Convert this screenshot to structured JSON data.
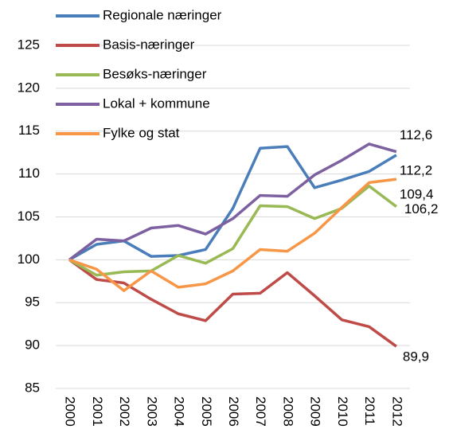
{
  "chart_data": {
    "type": "line",
    "categories": [
      "2000",
      "2001",
      "2002",
      "2003",
      "2004",
      "2005",
      "2006",
      "2007",
      "2008",
      "2009",
      "2010",
      "2011",
      "2012"
    ],
    "series": [
      {
        "name": "Regionale næringer",
        "color": "#4a7ebb",
        "values": [
          100,
          101.8,
          102.2,
          100.4,
          100.5,
          101.2,
          106,
          113,
          113.2,
          108.4,
          109.3,
          110.3,
          112.2
        ],
        "value_labels": [
          null,
          null,
          null,
          null,
          null,
          null,
          null,
          null,
          null,
          null,
          null,
          null,
          "112,2"
        ]
      },
      {
        "name": "Basis-næringer",
        "color": "#be4b48",
        "values": [
          100,
          97.7,
          97.3,
          95.4,
          93.7,
          92.9,
          96,
          96.1,
          98.5,
          95.8,
          93,
          92.2,
          89.9
        ],
        "value_labels": [
          null,
          null,
          null,
          null,
          null,
          null,
          null,
          null,
          null,
          null,
          null,
          null,
          "89,9"
        ]
      },
      {
        "name": "Besøks-næringer",
        "color": "#98b954",
        "values": [
          100,
          98.2,
          98.6,
          98.7,
          100.5,
          99.6,
          101.3,
          106.3,
          106.2,
          104.8,
          106,
          108.6,
          106.2
        ],
        "value_labels": [
          null,
          null,
          null,
          null,
          null,
          null,
          null,
          null,
          null,
          null,
          null,
          null,
          "106,2"
        ]
      },
      {
        "name": "Lokal + kommune",
        "color": "#7d60a0",
        "values": [
          100,
          102.4,
          102.2,
          103.7,
          104,
          103,
          104.8,
          107.5,
          107.4,
          109.9,
          111.6,
          113.5,
          112.6
        ],
        "value_labels": [
          null,
          null,
          null,
          null,
          null,
          null,
          null,
          null,
          null,
          null,
          null,
          null,
          "112,6"
        ]
      },
      {
        "name": "Fylke og stat",
        "color": "#f79646",
        "values": [
          100,
          98.9,
          96.4,
          98.7,
          96.8,
          97.2,
          98.7,
          101.2,
          101,
          103.1,
          106.1,
          109,
          109.4
        ],
        "value_labels": [
          null,
          null,
          null,
          null,
          null,
          null,
          null,
          null,
          null,
          null,
          null,
          null,
          "109,4"
        ]
      }
    ],
    "ylim": [
      85,
      125
    ],
    "yticks": [
      85,
      90,
      95,
      100,
      105,
      110,
      115,
      120,
      125
    ],
    "grid": true,
    "legend": "top-left"
  }
}
